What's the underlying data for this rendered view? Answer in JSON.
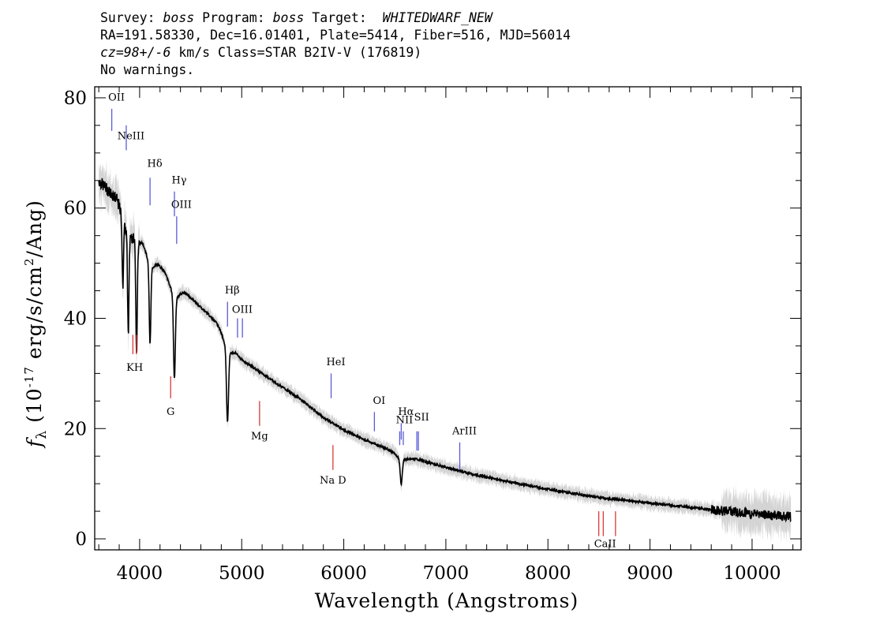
{
  "header": {
    "line1_prefix": "Survey: ",
    "survey": "boss",
    "line1_mid": " Program: ",
    "program": "boss",
    "line1_target_label": " Target:  ",
    "target": "WHITEDWARF_NEW",
    "line2": "RA=191.58330, Dec=16.01401, Plate=5414, Fiber=516, MJD=56014",
    "line3_cz": "cz=98+/-6",
    "line3_rest": " km/s Class=STAR B2IV-V (176819)",
    "line4": "No warnings."
  },
  "chart_data": {
    "type": "line",
    "xlabel": "Wavelength (Angstroms)",
    "ylabel_prefix": "f",
    "ylabel_sub": "λ",
    "ylabel_open": " (10",
    "ylabel_exp": "-17",
    "ylabel_mid": " erg/s/cm",
    "ylabel_exp2": "2",
    "ylabel_end": "/Ang)",
    "xlim": [
      3560,
      10480
    ],
    "ylim": [
      -2,
      82
    ],
    "x_ticks": [
      4000,
      5000,
      6000,
      7000,
      8000,
      9000,
      10000
    ],
    "y_ticks": [
      0,
      20,
      40,
      60,
      80
    ],
    "series": [
      {
        "color": "#000000",
        "continuum": [
          [
            3600,
            65
          ],
          [
            3700,
            63
          ],
          [
            3800,
            61.5
          ],
          [
            3900,
            59
          ],
          [
            4000,
            56
          ],
          [
            4100,
            52
          ],
          [
            4200,
            49.5
          ],
          [
            4300,
            47.5
          ],
          [
            4400,
            45.5
          ],
          [
            4600,
            42
          ],
          [
            4800,
            38.5
          ],
          [
            5000,
            32.5
          ],
          [
            5200,
            30
          ],
          [
            5400,
            27.5
          ],
          [
            5600,
            25
          ],
          [
            5800,
            22
          ],
          [
            6000,
            19.8
          ],
          [
            6200,
            18
          ],
          [
            6400,
            16.5
          ],
          [
            6600,
            15
          ],
          [
            6800,
            14
          ],
          [
            7000,
            13
          ],
          [
            7200,
            12
          ],
          [
            7500,
            10.8
          ],
          [
            8000,
            9
          ],
          [
            8500,
            7.5
          ],
          [
            9000,
            6.5
          ],
          [
            9500,
            5.5
          ],
          [
            10000,
            4.5
          ],
          [
            10400,
            4
          ]
        ],
        "absorption_lines": [
          {
            "center": 3835,
            "depth": 12,
            "width": 6
          },
          {
            "center": 3889,
            "depth": 18,
            "width": 7
          },
          {
            "center": 3970,
            "depth": 19,
            "width": 7
          },
          {
            "center": 4102,
            "depth": 14,
            "width": 8
          },
          {
            "center": 4341,
            "depth": 15,
            "width": 9
          },
          {
            "center": 4861,
            "depth": 13,
            "width": 10
          },
          {
            "center": 6563,
            "depth": 4.5,
            "width": 10
          }
        ]
      }
    ],
    "emission_line_markers": [
      {
        "label": "OII",
        "x": 3727,
        "y_low": 74,
        "y_high": 78,
        "label_y": 79.5
      },
      {
        "label": "NeIII",
        "x": 3869,
        "y_low": 70.5,
        "y_high": 75,
        "label_y": 72.5
      },
      {
        "label": "Hδ",
        "x": 4102,
        "y_low": 60.5,
        "y_high": 65.5,
        "label_y": 67.5
      },
      {
        "label": "Hγ",
        "x": 4341,
        "y_low": 58.5,
        "y_high": 63,
        "label_y": 64.5
      },
      {
        "label": "OIII",
        "x": 4363,
        "y_low": 53.5,
        "y_high": 58.5,
        "label_y": 60
      },
      {
        "label": "Hβ",
        "x": 4861,
        "y_low": 38.5,
        "y_high": 43,
        "label_y": 44.5
      },
      {
        "label": "OIII",
        "x": 4959,
        "y_low": 36.5,
        "y_high": 40,
        "label_y": 41
      },
      {
        "label": "",
        "x": 5007,
        "y_low": 36.5,
        "y_high": 40,
        "label_y": 41
      },
      {
        "label": "HeI",
        "x": 5876,
        "y_low": 25.5,
        "y_high": 30,
        "label_y": 31.5
      },
      {
        "label": "OI",
        "x": 6300,
        "y_low": 19.5,
        "y_high": 23,
        "label_y": 24.5
      },
      {
        "label": "NII",
        "x": 6548,
        "y_low": 17,
        "y_high": 19.5,
        "label_y": 21
      },
      {
        "label": "Hα",
        "x": 6563,
        "y_low": 18,
        "y_high": 21,
        "label_y": 22.5
      },
      {
        "label": "",
        "x": 6583,
        "y_low": 17,
        "y_high": 19.5,
        "label_y": 21
      },
      {
        "label": "SII",
        "x": 6716,
        "y_low": 16,
        "y_high": 19.5,
        "label_y": 21.5
      },
      {
        "label": "",
        "x": 6731,
        "y_low": 16,
        "y_high": 19.5,
        "label_y": 21.5
      },
      {
        "label": "ArIII",
        "x": 7136,
        "y_low": 12.5,
        "y_high": 17.5,
        "label_y": 19
      }
    ],
    "absorption_line_markers": [
      {
        "label": "K",
        "x": 3934,
        "y_low": 33.5,
        "y_high": 37
      },
      {
        "label": "H",
        "x": 3969,
        "y_low": 33.5,
        "y_high": 37
      },
      {
        "label": "G",
        "x": 4304,
        "y_low": 25.5,
        "y_high": 29.5
      },
      {
        "label": "Mg",
        "x": 5175,
        "y_low": 20.5,
        "y_high": 25
      },
      {
        "label": "Na D",
        "x": 5894,
        "y_low": 12.5,
        "y_high": 17
      },
      {
        "label": "CaII",
        "x": 8498,
        "y_low": 0.5,
        "y_high": 5
      },
      {
        "label": "",
        "x": 8542,
        "y_low": 0.5,
        "y_high": 5
      },
      {
        "label": "",
        "x": 8662,
        "y_low": 0.5,
        "y_high": 5
      }
    ],
    "absorption_labels": [
      {
        "label": "KH",
        "x": 3952,
        "y": 30.5
      },
      {
        "label": "G",
        "x": 4304,
        "y": 22.5
      },
      {
        "label": "Mg",
        "x": 5175,
        "y": 18
      },
      {
        "label": "Na  D",
        "x": 5894,
        "y": 10
      },
      {
        "label": "CaII",
        "x": 8560,
        "y": -1.5
      }
    ],
    "colors": {
      "emission": "#5b5bd6",
      "absorption": "#d93a3a",
      "flux": "#000000",
      "error_band": "#b0b0b0"
    }
  }
}
